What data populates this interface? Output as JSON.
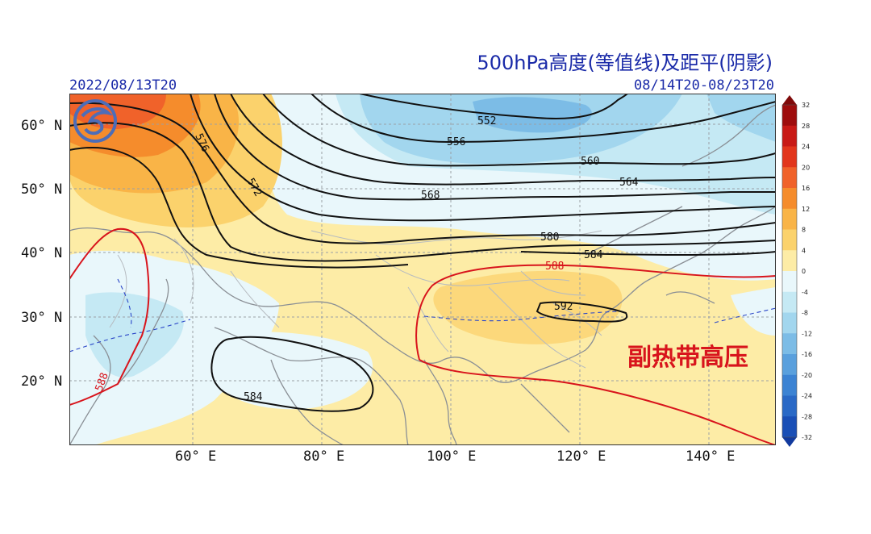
{
  "title": "500hPa高度(等值线)及距平(阴影)",
  "date_left": "2022/08/13T20",
  "date_right": "08/14T20-08/23T20",
  "lat_labels": [
    "60° N",
    "50° N",
    "40° N",
    "30° N",
    "20° N"
  ],
  "lon_labels": [
    "60° E",
    "80° E",
    "100° E",
    "120° E",
    "140° E"
  ],
  "contour_labels": {
    "c552": "552",
    "c556": "556",
    "c560": "560",
    "c564": "564",
    "c568": "568",
    "c572": "572",
    "c576": "576",
    "c580": "580",
    "c584a": "584",
    "c584b": "584",
    "c588a": "588",
    "c588b": "588",
    "c592": "592"
  },
  "annotation": "副热带高压",
  "colorbar": {
    "ticks": [
      "32",
      "28",
      "24",
      "20",
      "16",
      "12",
      "8",
      "4",
      "0",
      "-4",
      "-8",
      "-12",
      "-16",
      "-20",
      "-24",
      "-28",
      "-32"
    ],
    "colors": [
      "#9e0d0d",
      "#c81a16",
      "#e2361c",
      "#f0622a",
      "#f58c2c",
      "#f9b447",
      "#fbd26c",
      "#fdeca6",
      "#e9f7fb",
      "#c5e9f4",
      "#a2d6ee",
      "#7cbce6",
      "#5aa0dd",
      "#3c83d3",
      "#2a69c6",
      "#1a4fb6"
    ],
    "top_color": "#7f0a0a",
    "bottom_color": "#123a9e"
  },
  "colors": {
    "title_blue": "#1a2aa8",
    "subtropical_high_red": "#d8141c",
    "contour_black": "#111111"
  }
}
